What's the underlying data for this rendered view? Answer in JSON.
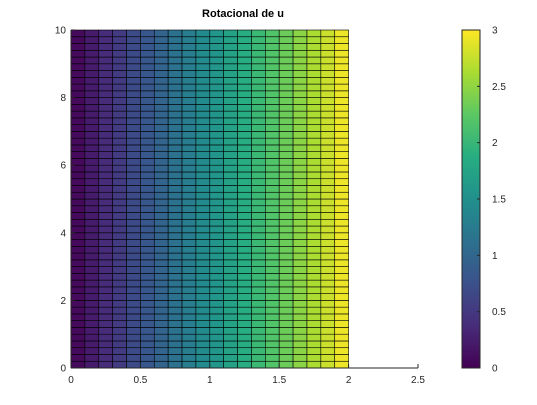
{
  "chart_data": {
    "type": "heatmap",
    "title": "Rotacional de  u",
    "xlabel": "",
    "ylabel": "",
    "xlim": [
      0,
      2.5
    ],
    "ylim": [
      0,
      10
    ],
    "xticks": [
      0,
      0.5,
      1,
      1.5,
      2,
      2.5
    ],
    "xtick_labels": [
      "0",
      "0.5",
      "1",
      "1.5",
      "2",
      "2.5"
    ],
    "yticks": [
      0,
      2,
      4,
      6,
      8,
      10
    ],
    "ytick_labels": [
      "0",
      "2",
      "4",
      "6",
      "8",
      "10"
    ],
    "x_grid": [
      0,
      0.1,
      0.2,
      0.3,
      0.4,
      0.5,
      0.6,
      0.7,
      0.8,
      0.9,
      1.0,
      1.1,
      1.2,
      1.3,
      1.4,
      1.5,
      1.6,
      1.7,
      1.8,
      1.9,
      2.0
    ],
    "y_step": 0.2,
    "value_function": "f(x) = 1.5 * x",
    "column_values": [
      0.075,
      0.225,
      0.375,
      0.525,
      0.675,
      0.825,
      0.975,
      1.125,
      1.275,
      1.425,
      1.575,
      1.725,
      1.875,
      2.025,
      2.175,
      2.325,
      2.475,
      2.625,
      2.775,
      2.925
    ],
    "edgecolor": "#000000",
    "colormap": "viridis",
    "colorbar": {
      "clim": [
        0,
        3
      ],
      "ticks": [
        0,
        0.5,
        1,
        1.5,
        2,
        2.5,
        3
      ],
      "tick_labels": [
        "0",
        "0.5",
        "1",
        "1.5",
        "2",
        "2.5",
        "3"
      ],
      "placement": "right"
    },
    "grid": false
  }
}
